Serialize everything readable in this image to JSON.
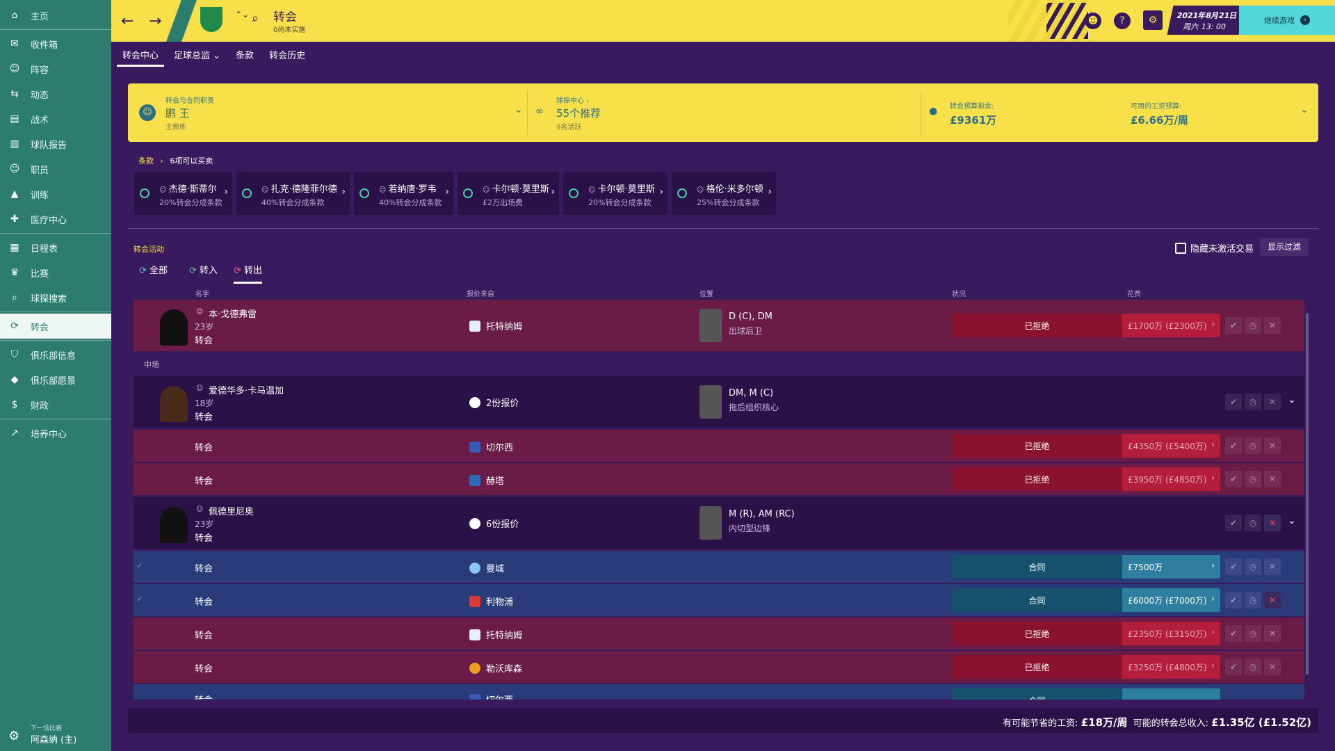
{
  "sidebar": {
    "items": [
      {
        "label": "主页",
        "icon": "home-icon",
        "glyph": "⌂"
      },
      {
        "label": "收件箱",
        "icon": "inbox-icon",
        "glyph": "✉"
      },
      {
        "label": "阵容",
        "icon": "squad-icon",
        "glyph": "☺"
      },
      {
        "label": "动态",
        "icon": "dynamics-icon",
        "glyph": "⇆"
      },
      {
        "label": "战术",
        "icon": "tactics-icon",
        "glyph": "▤"
      },
      {
        "label": "球队报告",
        "icon": "report-icon",
        "glyph": "▥"
      },
      {
        "label": "职员",
        "icon": "staff-icon",
        "glyph": "☺"
      },
      {
        "label": "训练",
        "icon": "training-icon",
        "glyph": "▲"
      },
      {
        "label": "医疗中心",
        "icon": "medical-icon",
        "glyph": "✚"
      },
      {
        "label": "日程表",
        "icon": "calendar-icon",
        "glyph": "▦"
      },
      {
        "label": "比赛",
        "icon": "trophy-icon",
        "glyph": "♛"
      },
      {
        "label": "球探搜索",
        "icon": "search-icon",
        "glyph": "⌕"
      },
      {
        "label": "转会",
        "icon": "transfer-icon",
        "glyph": "⟳"
      },
      {
        "label": "俱乐部信息",
        "icon": "shield-icon",
        "glyph": "⛉"
      },
      {
        "label": "俱乐部愿景",
        "icon": "vision-icon",
        "glyph": "◆"
      },
      {
        "label": "财政",
        "icon": "finance-icon",
        "glyph": "$"
      },
      {
        "label": "培养中心",
        "icon": "development-icon",
        "glyph": "↗"
      }
    ],
    "next_match_label": "下一场比赛",
    "next_match": "阿森纳 (主)"
  },
  "topbar": {
    "title": "转会",
    "subtitle": "0尚未实施",
    "date": "2021年8月21日",
    "time": "周六 13: 00",
    "continue": "继续游戏",
    "help": "?",
    "settings": "⚙"
  },
  "tabs": [
    "转会中心",
    "足球总监 ⌄",
    "条款",
    "转会历史"
  ],
  "banner": {
    "person_label": "转会与合同职责",
    "person_name": "鹏 王",
    "person_role": "主教练",
    "scout_label": "球探中心 ›",
    "scout_value": "55个推荐",
    "scout_sub": "9名活跃",
    "budget_label": "转会预算剩余:",
    "budget_value": "£9361万",
    "wage_label": "可用的工资预算:",
    "wage_value": "£6.66万/周"
  },
  "clauses": {
    "crumb": "条款",
    "crumb_sep": "›",
    "count": "6项可以买卖",
    "items": [
      {
        "name": "杰德·斯蒂尔",
        "desc": "20%转会分成条款"
      },
      {
        "name": "扎克·德隆菲尔德",
        "desc": "40%转会分成条款"
      },
      {
        "name": "若纳唐·罗韦",
        "desc": "40%转会分成条款"
      },
      {
        "name": "卡尔顿·莫里斯",
        "desc": "£2万出场费"
      },
      {
        "name": "卡尔顿·莫里斯",
        "desc": "20%转会分成条款"
      },
      {
        "name": "格伦·米多尔顿",
        "desc": "25%转会分成条款"
      }
    ]
  },
  "activity": {
    "title": "转会活动",
    "hide_inactive": "隐藏未激活交易",
    "filter": "显示过滤",
    "filters": [
      "全部",
      "转入",
      "转出"
    ],
    "columns": [
      "名字",
      "报价来自",
      "位置",
      "状况",
      "花费"
    ],
    "section_midfield": "中场",
    "rows": [
      {
        "name": "本·戈德弗雷",
        "age": "23岁",
        "type": "转会",
        "from": "托特纳姆",
        "pos1": "D (C), DM",
        "pos2": "出球后卫",
        "status": "已拒绝",
        "fee": "£1700万 (£2300万)"
      },
      {
        "name": "爱德华多·卡马温加",
        "age": "18岁",
        "type": "转会",
        "from": "2份报价",
        "pos1": "DM, M (C)",
        "pos2": "拖后组织核心"
      },
      {
        "type": "转会",
        "from": "切尔西",
        "status": "已拒绝",
        "fee": "£4350万 (£5400万)"
      },
      {
        "type": "转会",
        "from": "赫塔",
        "status": "已拒绝",
        "fee": "£3950万 (£4850万)"
      },
      {
        "name": "佩德里尼奥",
        "age": "23岁",
        "type": "转会",
        "from": "6份报价",
        "pos1": "M (R), AM (RC)",
        "pos2": "内切型边锋"
      },
      {
        "type": "转会",
        "from": "曼城",
        "status": "合同",
        "fee": "£7500万"
      },
      {
        "type": "转会",
        "from": "利物浦",
        "status": "合同",
        "fee": "£6000万 (£7000万)"
      },
      {
        "type": "转会",
        "from": "托特纳姆",
        "status": "已拒绝",
        "fee": "£2350万 (£3150万)"
      },
      {
        "type": "转会",
        "from": "勒沃库森",
        "status": "已拒绝",
        "fee": "£3250万 (£4800万)"
      },
      {
        "type": "转会",
        "from": "切尔西",
        "status": "合同",
        "fee": ""
      }
    ]
  },
  "footer": {
    "wage_label": "有可能节省的工资:",
    "wage_value": "£18万/周",
    "income_label": "可能的转会总收入:",
    "income_value": "£1.35亿 (£1.52亿)"
  },
  "colors": {
    "sidebar": "#2c7d6e",
    "topbar": "#f8e04a",
    "background": "#3a1a5e",
    "rejected": "#b41e3a",
    "contract": "#2e7ea0"
  }
}
